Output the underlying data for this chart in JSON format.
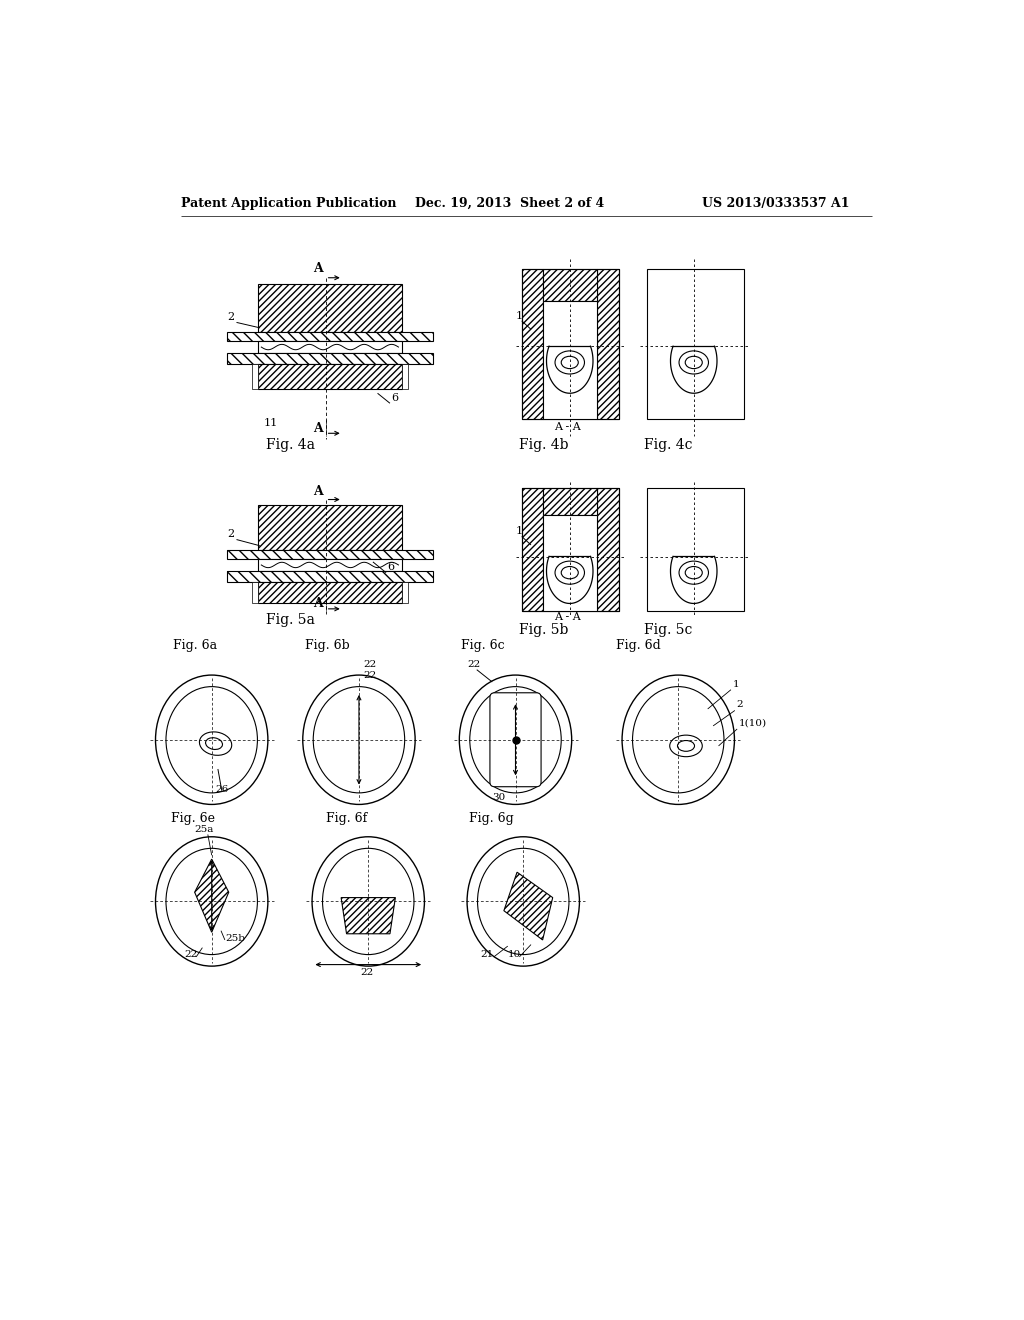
{
  "header_left": "Patent Application Publication",
  "header_mid": "Dec. 19, 2013  Sheet 2 of 4",
  "header_right": "US 2013/0333537 A1",
  "background_color": "#ffffff"
}
